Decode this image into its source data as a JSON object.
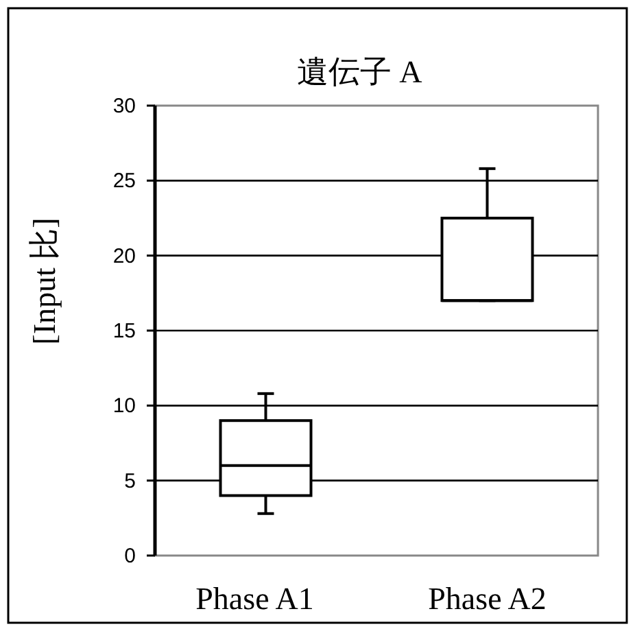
{
  "chart_data": {
    "type": "box",
    "title": "遺伝子 A",
    "ylabel": "[Input 比]",
    "categories": [
      "Phase A1",
      "Phase A2"
    ],
    "boxes": [
      {
        "low": 2.8,
        "q1": 4,
        "median": 6,
        "q3": 9,
        "high": 10.8
      },
      {
        "low": 17,
        "q1": 17,
        "median": 17,
        "q3": 22.5,
        "high": 25.8
      }
    ],
    "ylim": [
      0,
      30
    ],
    "yticks": [
      0,
      5,
      10,
      15,
      20,
      25,
      30
    ],
    "grid": "y"
  }
}
